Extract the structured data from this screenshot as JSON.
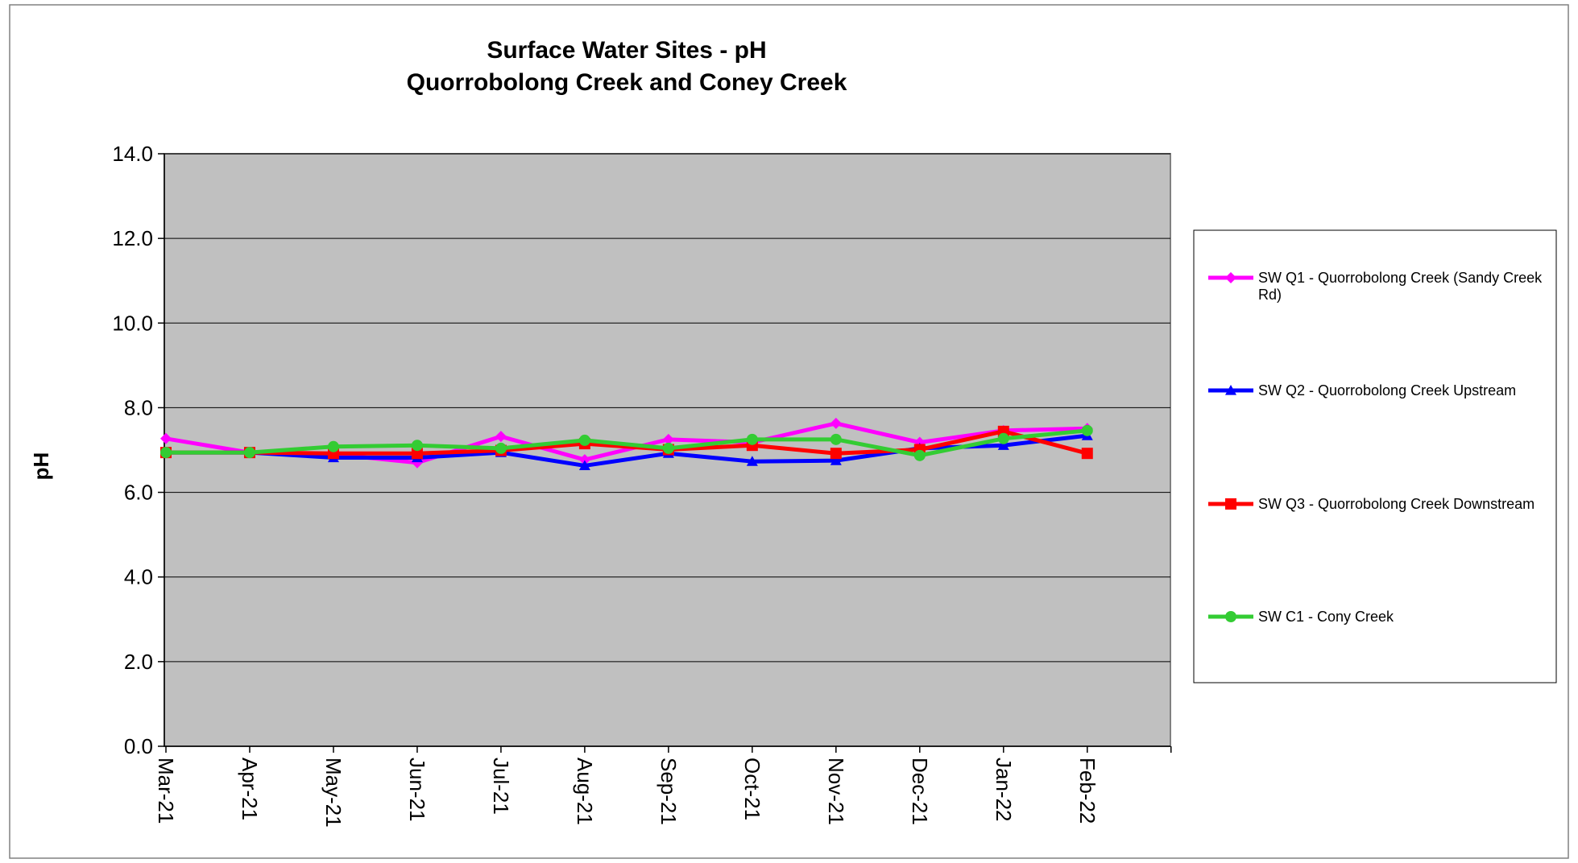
{
  "chart_data": {
    "type": "line",
    "title": "Surface Water Sites - pH",
    "subtitle": "Quorrobolong Creek and Coney Creek",
    "y_label": "pH",
    "categories": [
      "Mar-21",
      "Apr-21",
      "May-21",
      "Jun-21",
      "Jul-21",
      "Aug-21",
      "Sep-21",
      "Oct-21",
      "Nov-21",
      "Dec-21",
      "Jan-22",
      "Feb-22",
      null
    ],
    "series": [
      {
        "name": "SW Q1 - Quorrobolong Creek (Sandy Creek Rd)",
        "color": "#ff00ff",
        "marker": "diamond",
        "values": [
          7.27,
          6.94,
          6.9,
          6.7,
          7.32,
          6.77,
          7.25,
          7.18,
          7.63,
          7.18,
          7.46,
          7.51,
          null
        ]
      },
      {
        "name": "SW Q2 - Quorrobolong Creek Upstream",
        "color": "#0000ff",
        "marker": "triangle",
        "values": [
          6.94,
          6.94,
          6.82,
          6.82,
          6.94,
          6.63,
          6.92,
          6.73,
          6.75,
          7.04,
          7.11,
          7.34,
          null
        ]
      },
      {
        "name": "SW Q3 - Quorrobolong Creek Downstream",
        "color": "#ff0000",
        "marker": "square",
        "values": [
          6.94,
          6.94,
          6.92,
          6.92,
          6.99,
          7.15,
          7.01,
          7.11,
          6.92,
          7.01,
          7.44,
          6.92,
          null
        ]
      },
      {
        "name": "SW C1 - Cony Creek",
        "color": "#33cc33",
        "marker": "circle",
        "values": [
          6.94,
          6.94,
          7.08,
          7.11,
          7.04,
          7.23,
          7.04,
          7.25,
          7.25,
          6.87,
          7.27,
          7.46,
          null
        ]
      }
    ],
    "ylim": [
      0,
      14
    ],
    "yticks": [
      {
        "value": 0,
        "label": "0.0"
      },
      {
        "value": 2,
        "label": "2.0"
      },
      {
        "value": 4,
        "label": "4.0"
      },
      {
        "value": 6,
        "label": "6.0"
      },
      {
        "value": 8,
        "label": "8.0"
      },
      {
        "value": 10,
        "label": "10.0"
      },
      {
        "value": 12,
        "label": "12.0"
      },
      {
        "value": 14,
        "label": "14.0"
      }
    ],
    "grid": true,
    "legend": "right"
  }
}
